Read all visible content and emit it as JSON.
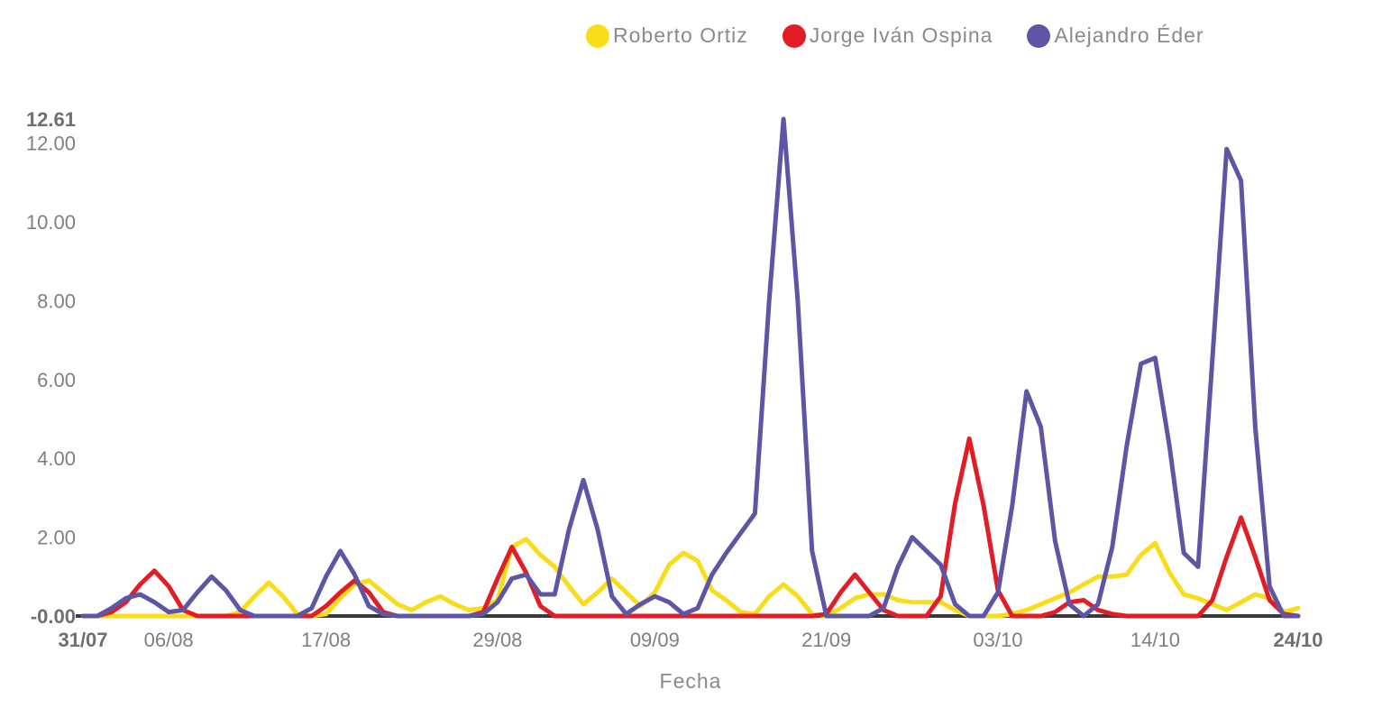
{
  "legend": [
    {
      "label": "Roberto Ortiz",
      "color": "#F9DC1A"
    },
    {
      "label": "Jorge Iván Ospina",
      "color": "#E21D26"
    },
    {
      "label": "Alejandro Éder",
      "color": "#5D56A5"
    }
  ],
  "chart_data": {
    "type": "line",
    "title": "",
    "xlabel": "Fecha",
    "ylabel": "",
    "ylim": [
      0,
      12.61
    ],
    "grid": false,
    "legend_position": "top-right",
    "y_ticks": [
      "-0.00",
      "2.00",
      "4.00",
      "6.00",
      "8.00",
      "10.00",
      "12.00",
      "12.61"
    ],
    "x_ticks": [
      {
        "label": "31/07",
        "index": 0,
        "bold": true
      },
      {
        "label": "06/08",
        "index": 6,
        "bold": false
      },
      {
        "label": "17/08",
        "index": 17,
        "bold": false
      },
      {
        "label": "29/08",
        "index": 29,
        "bold": false
      },
      {
        "label": "09/09",
        "index": 40,
        "bold": false
      },
      {
        "label": "21/09",
        "index": 52,
        "bold": false
      },
      {
        "label": "03/10",
        "index": 64,
        "bold": false
      },
      {
        "label": "14/10",
        "index": 75,
        "bold": false
      },
      {
        "label": "24/10",
        "index": 85,
        "bold": true
      }
    ],
    "x": [
      "31/07",
      "01/08",
      "02/08",
      "03/08",
      "04/08",
      "05/08",
      "06/08",
      "07/08",
      "08/08",
      "09/08",
      "10/08",
      "11/08",
      "12/08",
      "13/08",
      "14/08",
      "15/08",
      "16/08",
      "17/08",
      "18/08",
      "19/08",
      "20/08",
      "21/08",
      "22/08",
      "23/08",
      "24/08",
      "25/08",
      "26/08",
      "27/08",
      "28/08",
      "29/08",
      "30/08",
      "31/08",
      "01/09",
      "02/09",
      "03/09",
      "04/09",
      "05/09",
      "06/09",
      "07/09",
      "08/09",
      "09/09",
      "10/09",
      "11/09",
      "12/09",
      "13/09",
      "14/09",
      "15/09",
      "16/09",
      "17/09",
      "18/09",
      "19/09",
      "20/09",
      "21/09",
      "22/09",
      "23/09",
      "24/09",
      "25/09",
      "26/09",
      "27/09",
      "28/09",
      "29/09",
      "30/09",
      "01/10",
      "02/10",
      "03/10",
      "04/10",
      "05/10",
      "06/10",
      "07/10",
      "08/10",
      "09/10",
      "10/10",
      "11/10",
      "12/10",
      "13/10",
      "14/10",
      "15/10",
      "16/10",
      "17/10",
      "18/10",
      "19/10",
      "20/10",
      "21/10",
      "22/10",
      "23/10",
      "24/10"
    ],
    "series": [
      {
        "name": "Roberto Ortiz",
        "color": "#F9DC1A",
        "values": [
          0,
          0,
          0,
          0,
          0,
          0,
          0,
          0,
          0,
          0,
          0,
          0.1,
          0.5,
          0.85,
          0.5,
          0.05,
          0,
          0.05,
          0.45,
          0.8,
          0.9,
          0.6,
          0.3,
          0.15,
          0.35,
          0.5,
          0.3,
          0.15,
          0.2,
          0.4,
          1.75,
          1.95,
          1.55,
          1.25,
          0.75,
          0.3,
          0.6,
          0.95,
          0.6,
          0.25,
          0.6,
          1.3,
          1.6,
          1.4,
          0.65,
          0.4,
          0.1,
          0.05,
          0.5,
          0.8,
          0.5,
          0.05,
          0,
          0.2,
          0.45,
          0.55,
          0.55,
          0.4,
          0.35,
          0.35,
          0.35,
          0.15,
          0,
          0,
          0,
          0.05,
          0.15,
          0.3,
          0.45,
          0.6,
          0.8,
          1,
          1,
          1.05,
          1.55,
          1.85,
          1.1,
          0.55,
          0.45,
          0.3,
          0.15,
          0.35,
          0.55,
          0.45,
          0.1,
          0.2
        ]
      },
      {
        "name": "Jorge Iván Ospina",
        "color": "#E21D26",
        "values": [
          0,
          0,
          0.1,
          0.35,
          0.8,
          1.15,
          0.75,
          0.15,
          0,
          0,
          0,
          0,
          0,
          0,
          0,
          0,
          0,
          0.25,
          0.6,
          0.9,
          0.6,
          0.1,
          0,
          0,
          0,
          0,
          0,
          0,
          0.1,
          0.95,
          1.75,
          1.1,
          0.25,
          0,
          0,
          0,
          0,
          0,
          0,
          0,
          0,
          0,
          0,
          0,
          0,
          0,
          0,
          0,
          0,
          0,
          0,
          0,
          0.05,
          0.6,
          1.05,
          0.6,
          0.15,
          0,
          0,
          0,
          0.5,
          2.85,
          4.5,
          2.8,
          0.65,
          0,
          0,
          0,
          0.1,
          0.35,
          0.4,
          0.15,
          0.05,
          0,
          0,
          0,
          0,
          0,
          0,
          0.4,
          1.5,
          2.5,
          1.5,
          0.4,
          0.05,
          0
        ]
      },
      {
        "name": "Alejandro Éder",
        "color": "#5D56A5",
        "values": [
          0,
          0,
          0.2,
          0.45,
          0.55,
          0.35,
          0.1,
          0.15,
          0.6,
          1,
          0.65,
          0.15,
          0,
          0,
          0,
          0,
          0.2,
          1,
          1.65,
          1.05,
          0.25,
          0.05,
          0,
          0,
          0,
          0,
          0,
          0,
          0.05,
          0.35,
          0.95,
          1.05,
          0.55,
          0.55,
          2.2,
          3.45,
          2.2,
          0.5,
          0.05,
          0.3,
          0.5,
          0.35,
          0.05,
          0.2,
          1.05,
          1.6,
          2.1,
          2.6,
          8,
          12.61,
          8,
          1.65,
          0,
          0,
          0,
          0,
          0.2,
          1.25,
          2,
          1.65,
          1.3,
          0.3,
          0,
          0,
          0.6,
          2.8,
          5.7,
          4.8,
          1.9,
          0.3,
          0,
          0.3,
          1.75,
          4.3,
          6.4,
          6.55,
          4.3,
          1.6,
          1.25,
          6.5,
          11.85,
          11.05,
          4.8,
          0.75,
          0,
          0
        ]
      }
    ]
  }
}
